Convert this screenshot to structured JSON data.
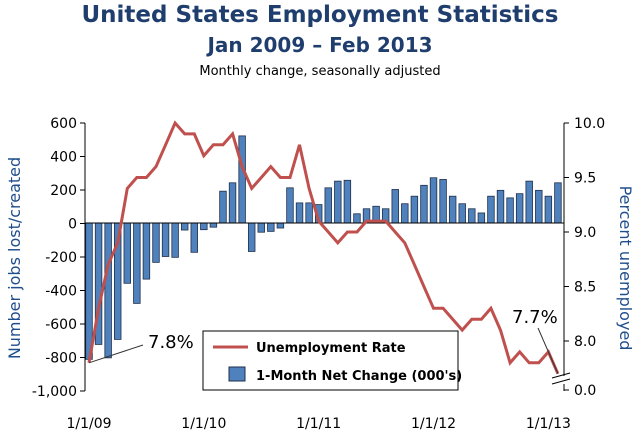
{
  "chart_data": {
    "type": "bar+line",
    "title": "United States Employment Statistics",
    "subtitle": "Jan 2009 – Feb 2013",
    "subtitle2": "Monthly change, seasonally adjusted",
    "ylabel": "Number jobs lost/created",
    "y2label": "Percent unemployed",
    "ylim": [
      -1000,
      600
    ],
    "y_ticks": [
      "600",
      "400",
      "200",
      "0",
      "-200",
      "-400",
      "-600",
      "-800",
      "-1,000"
    ],
    "y2_ticks": [
      "10.0",
      "9.5",
      "9.0",
      "8.5",
      "8.0",
      "0.0"
    ],
    "y2_broken_axis": true,
    "x_tick_labels": [
      "1/1/09",
      "1/1/10",
      "1/1/11",
      "1/1/12",
      "1/1/13"
    ],
    "months": "Jan 2009 – Feb 2013 (monthly)",
    "series": [
      {
        "name": "1-Month Net Change (000's)",
        "type": "bar",
        "color": "#4f81bd",
        "values": [
          -814,
          -725,
          -805,
          -695,
          -360,
          -480,
          -335,
          -235,
          -200,
          -205,
          -42,
          -175,
          -40,
          -25,
          190,
          240,
          520,
          -170,
          -55,
          -50,
          -30,
          210,
          120,
          120,
          110,
          210,
          250,
          255,
          55,
          85,
          100,
          85,
          200,
          115,
          160,
          225,
          270,
          260,
          160,
          115,
          85,
          60,
          160,
          195,
          150,
          175,
          250,
          195,
          160,
          240
        ]
      },
      {
        "name": "Unemployment Rate",
        "type": "line",
        "axis": "right",
        "color": "#c0504d",
        "values": [
          7.8,
          8.3,
          8.7,
          8.9,
          9.4,
          9.5,
          9.5,
          9.6,
          9.8,
          10.0,
          9.9,
          9.9,
          9.7,
          9.8,
          9.8,
          9.9,
          9.6,
          9.4,
          9.5,
          9.6,
          9.5,
          9.5,
          9.8,
          9.4,
          9.1,
          9.0,
          8.9,
          9.0,
          9.0,
          9.1,
          9.1,
          9.1,
          9.0,
          8.9,
          8.7,
          8.5,
          8.3,
          8.3,
          8.2,
          8.1,
          8.2,
          8.2,
          8.3,
          8.1,
          7.8,
          7.9,
          7.8,
          7.8,
          7.9,
          7.7
        ]
      }
    ],
    "annotations": [
      "7.8%",
      "7.7%"
    ],
    "legend": [
      "Unemployment Rate",
      "1-Month Net Change (000's)"
    ],
    "legend_position": "bottom-center",
    "grid": false
  }
}
